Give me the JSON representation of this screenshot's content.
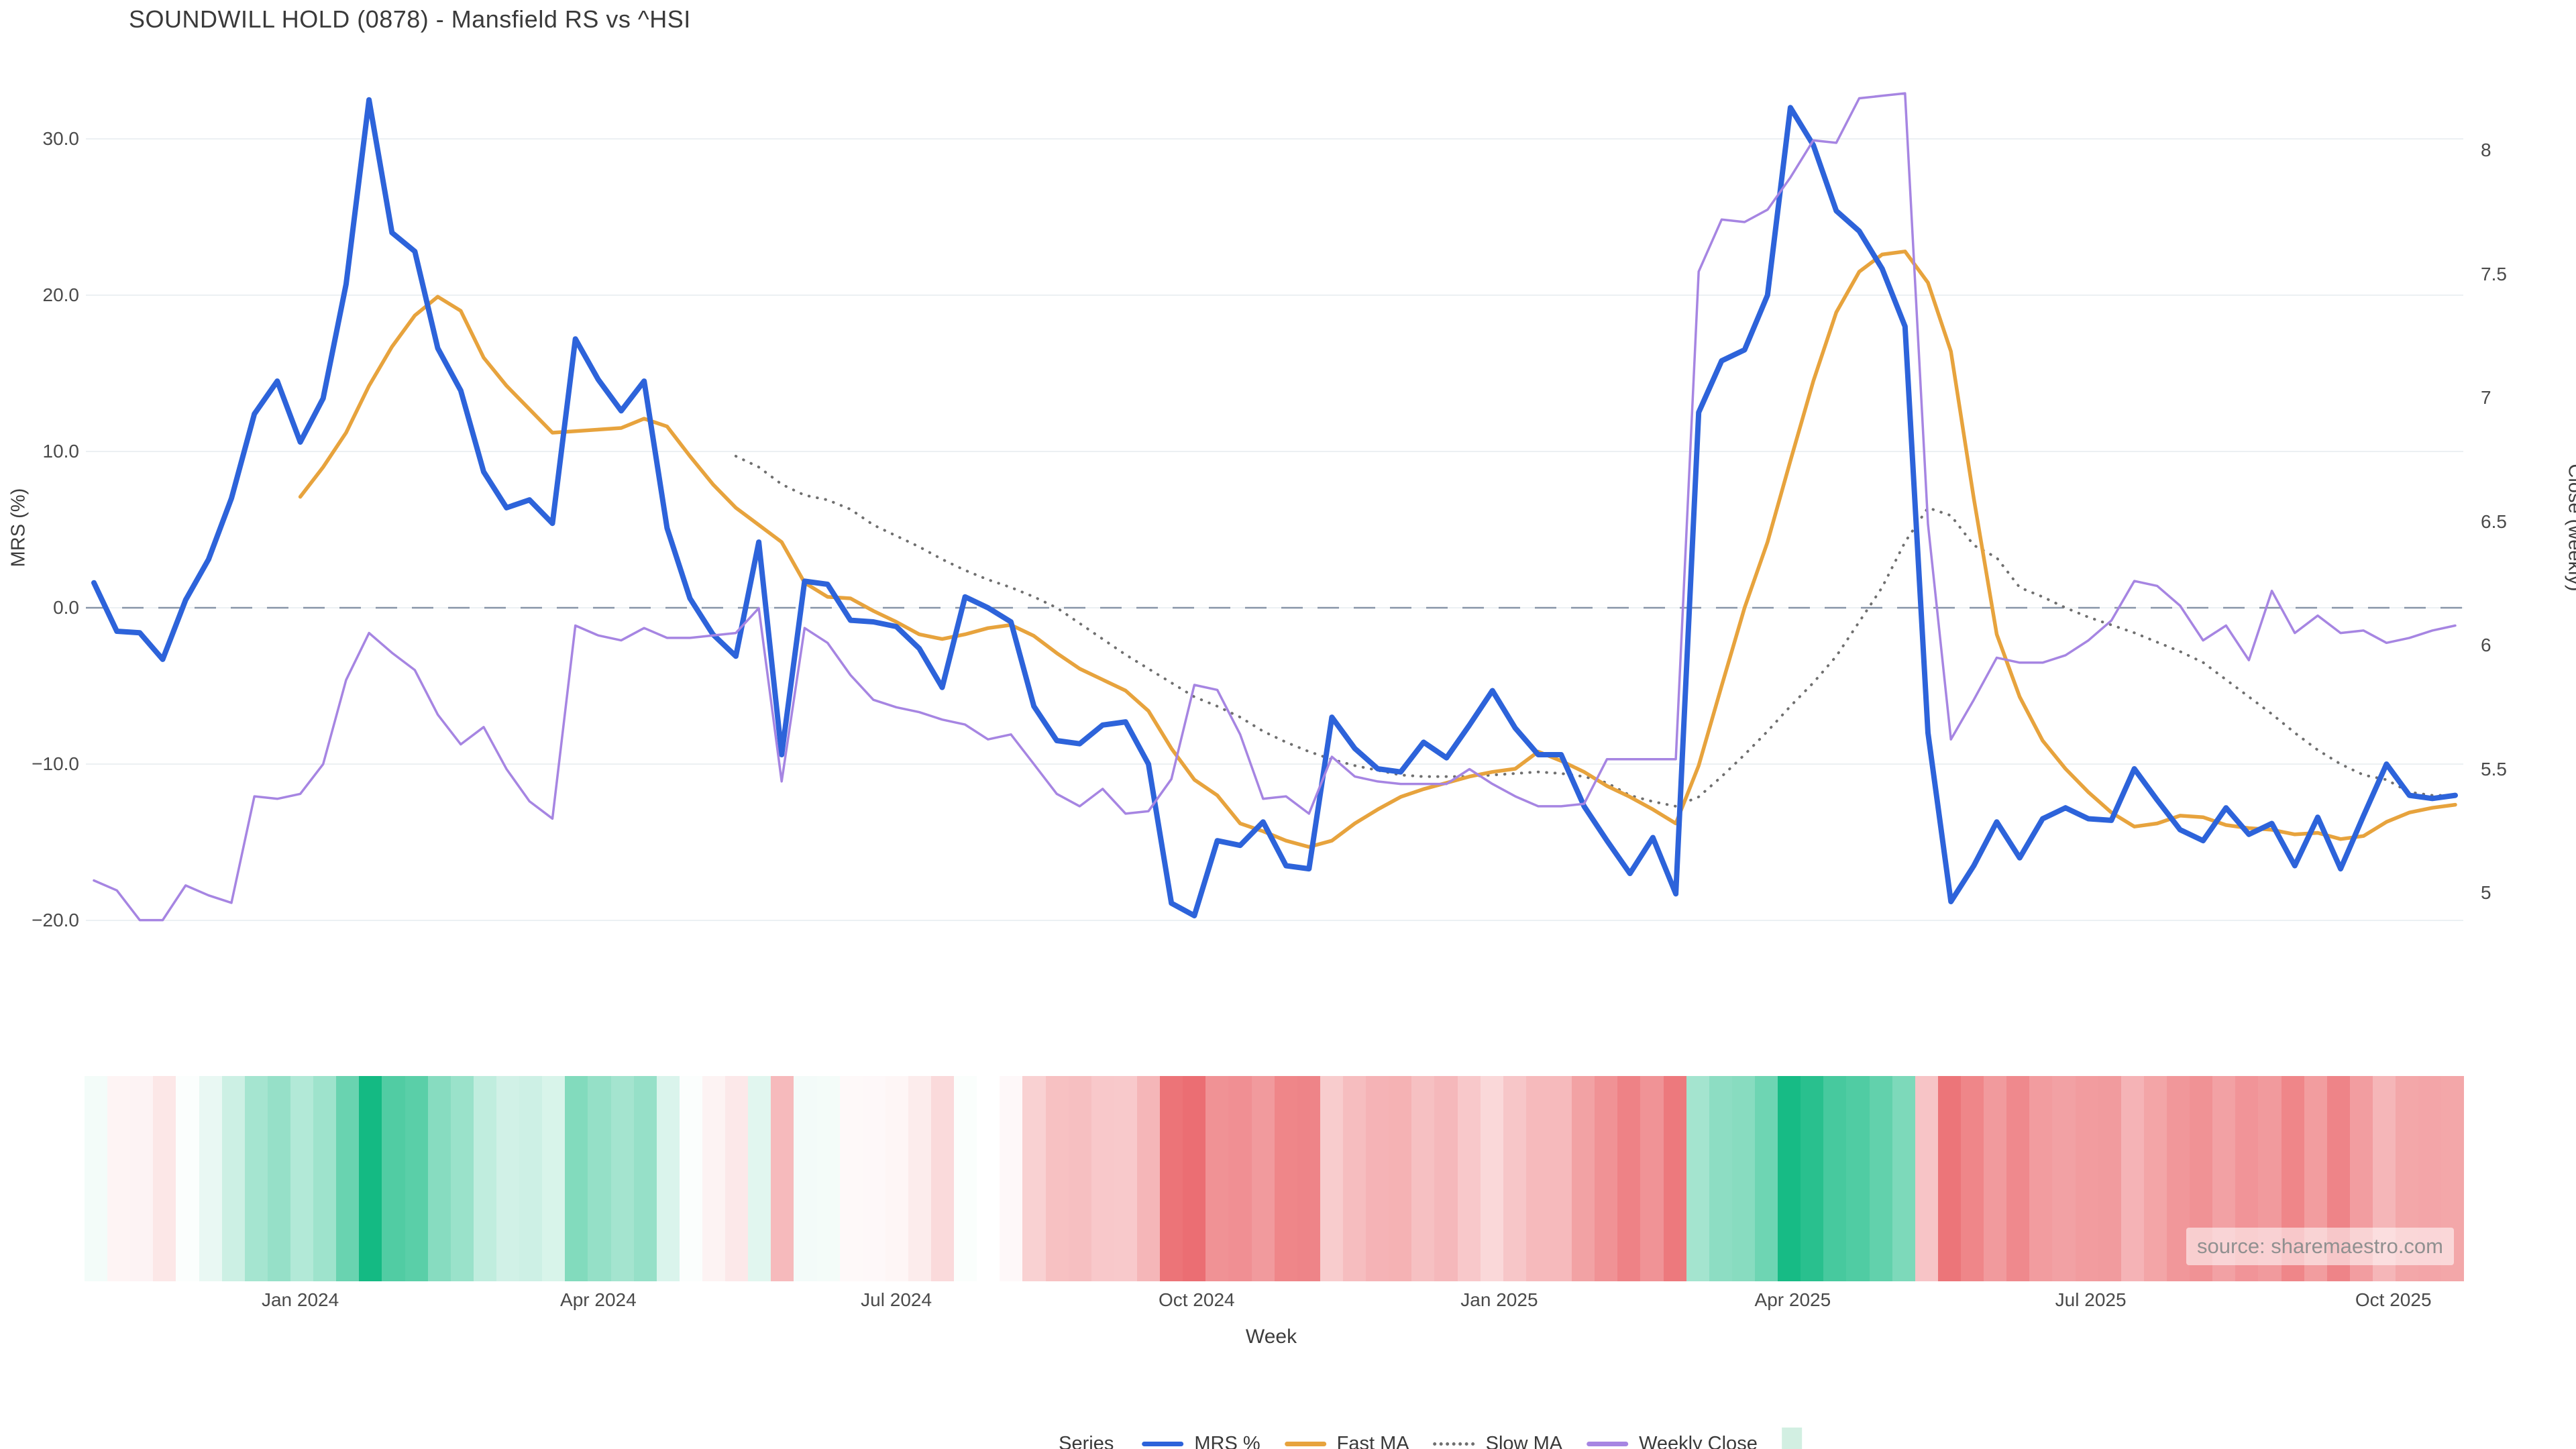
{
  "title": "SOUNDWILL HOLD (0878) - Mansfield RS vs ^HSI",
  "source_note": "source: sharemaestro.com",
  "axes": {
    "left": {
      "label": "MRS (%)",
      "ticks": [
        {
          "v": 30,
          "label": "30.0"
        },
        {
          "v": 20,
          "label": "20.0"
        },
        {
          "v": 10,
          "label": "10.0"
        },
        {
          "v": 0,
          "label": "0.0"
        },
        {
          "v": -10,
          "label": "−10.0"
        },
        {
          "v": -20,
          "label": "−20.0"
        }
      ]
    },
    "right": {
      "label": "Close (weekly)",
      "ticks": [
        {
          "v": 8,
          "label": "8"
        },
        {
          "v": 7.5,
          "label": "7.5"
        },
        {
          "v": 7,
          "label": "7"
        },
        {
          "v": 6.5,
          "label": "6.5"
        },
        {
          "v": 6,
          "label": "6"
        },
        {
          "v": 5.5,
          "label": "5.5"
        },
        {
          "v": 5,
          "label": "5"
        }
      ]
    },
    "x": {
      "label": "Week",
      "ticks": [
        {
          "w": 9.0,
          "label": "Jan 2024"
        },
        {
          "w": 22.0,
          "label": "Apr 2024"
        },
        {
          "w": 35.0,
          "label": "Jul 2024"
        },
        {
          "w": 48.1,
          "label": "Oct 2024"
        },
        {
          "w": 61.3,
          "label": "Jan 2025"
        },
        {
          "w": 74.1,
          "label": "Apr 2025"
        },
        {
          "w": 87.1,
          "label": "Jul 2025"
        },
        {
          "w": 100.3,
          "label": "Oct 2025"
        }
      ]
    }
  },
  "legend": {
    "title": "Series",
    "items": [
      {
        "label": "MRS %",
        "style": "solid",
        "color": "#2d63da"
      },
      {
        "label": "Fast MA",
        "style": "solid",
        "color": "#e7a33d"
      },
      {
        "label": "Slow MA",
        "style": "dotted",
        "color": "#6f6f6f"
      },
      {
        "label": "Weekly Close",
        "style": "solid",
        "color": "#a685e2"
      },
      {
        "label": "",
        "style": "swatch",
        "color": "#d2efe2"
      }
    ]
  },
  "chart_data": {
    "type": "line",
    "x_unit": "week_index",
    "n_weeks": 104,
    "xlabel": "Week",
    "ylabel_left": "MRS (%)",
    "ylabel_right": "Close (weekly)",
    "left_ylim": [
      -22,
      34
    ],
    "right_ylim": [
      4.8,
      8.4
    ],
    "grid": "horizontal-left-ticks",
    "zero_line": {
      "value": 0,
      "style": "dashed",
      "color": "#8795a8"
    },
    "series": [
      {
        "name": "MRS %",
        "axis": "left",
        "color": "#2d63da",
        "width": 8,
        "dash": "solid",
        "values": [
          1.6,
          -1.5,
          -1.6,
          -3.3,
          0.5,
          3.1,
          7.0,
          12.4,
          14.5,
          10.6,
          13.4,
          20.7,
          32.5,
          24.0,
          22.8,
          16.6,
          13.9,
          8.7,
          6.4,
          6.9,
          5.4,
          17.2,
          14.6,
          12.6,
          14.5,
          5.1,
          0.6,
          -1.7,
          -3.1,
          4.2,
          -9.4,
          1.7,
          1.5,
          -0.8,
          -0.9,
          -1.2,
          -2.6,
          -5.1,
          0.7,
          0.0,
          -0.9,
          -6.3,
          -8.5,
          -8.7,
          -7.5,
          -7.3,
          -10.0,
          -18.9,
          -19.7,
          -14.9,
          -15.2,
          -13.7,
          -16.5,
          -16.7,
          -7.0,
          -9.0,
          -10.3,
          -10.5,
          -8.6,
          -9.6,
          -7.5,
          -5.3,
          -7.7,
          -9.4,
          -9.4,
          -12.7,
          -14.9,
          -17.0,
          -14.7,
          -18.3,
          12.5,
          15.8,
          16.5,
          20.0,
          32.0,
          29.6,
          25.4,
          24.1,
          21.7,
          18.0,
          -8.0,
          -18.8,
          -16.5,
          -13.7,
          -16.0,
          -13.5,
          -12.8,
          -13.5,
          -13.6,
          -10.3,
          -12.3,
          -14.2,
          -14.9,
          -12.8,
          -14.5,
          -13.8,
          -16.5,
          -13.4,
          -16.7,
          -13.3,
          -10.0,
          -12.0,
          -12.2,
          -12.0
        ]
      },
      {
        "name": "Fast MA",
        "axis": "left",
        "color": "#e7a33d",
        "width": 5.5,
        "dash": "solid",
        "values": [
          null,
          null,
          null,
          null,
          null,
          null,
          null,
          null,
          null,
          7.1,
          9.0,
          11.2,
          14.2,
          16.7,
          18.7,
          19.9,
          19.0,
          16.0,
          14.2,
          12.7,
          11.2,
          11.3,
          11.4,
          11.5,
          12.1,
          11.6,
          9.7,
          7.9,
          6.4,
          5.3,
          4.2,
          1.6,
          0.7,
          0.6,
          -0.2,
          -0.9,
          -1.7,
          -2.0,
          -1.7,
          -1.3,
          -1.1,
          -1.8,
          -2.9,
          -3.9,
          -4.6,
          -5.3,
          -6.6,
          -9.0,
          -11.0,
          -12.0,
          -13.8,
          -14.3,
          -14.9,
          -15.3,
          -14.9,
          -13.8,
          -12.9,
          -12.1,
          -11.6,
          -11.2,
          -10.8,
          -10.5,
          -10.3,
          -9.2,
          -9.8,
          -10.5,
          -11.4,
          -12.1,
          -12.9,
          -13.8,
          -10.1,
          -5.0,
          0.0,
          4.2,
          9.4,
          14.5,
          18.9,
          21.5,
          22.6,
          22.8,
          20.8,
          16.4,
          7.0,
          -1.7,
          -5.7,
          -8.5,
          -10.3,
          -11.8,
          -13.1,
          -14.0,
          -13.8,
          -13.3,
          -13.4,
          -13.9,
          -14.1,
          -14.2,
          -14.5,
          -14.4,
          -14.8,
          -14.6,
          -13.7,
          -13.1,
          -12.8,
          -12.6
        ]
      },
      {
        "name": "Slow MA",
        "axis": "left",
        "color": "#6f6f6f",
        "width": 4,
        "dash": "dotted",
        "values": [
          null,
          null,
          null,
          null,
          null,
          null,
          null,
          null,
          null,
          null,
          null,
          null,
          null,
          null,
          null,
          null,
          null,
          null,
          null,
          null,
          null,
          null,
          null,
          null,
          null,
          null,
          null,
          null,
          9.7,
          9.0,
          7.9,
          7.2,
          6.9,
          6.3,
          5.3,
          4.6,
          3.9,
          3.1,
          2.4,
          1.8,
          1.3,
          0.7,
          0.0,
          -1.0,
          -2.0,
          -3.0,
          -3.9,
          -4.8,
          -5.7,
          -6.3,
          -7.0,
          -7.9,
          -8.6,
          -9.2,
          -9.7,
          -10.1,
          -10.4,
          -10.7,
          -10.8,
          -10.8,
          -10.8,
          -10.7,
          -10.6,
          -10.5,
          -10.6,
          -10.8,
          -11.2,
          -12.0,
          -12.4,
          -12.7,
          -12.1,
          -10.8,
          -9.4,
          -7.9,
          -6.3,
          -4.8,
          -3.1,
          -0.9,
          1.3,
          4.2,
          6.4,
          5.9,
          4.0,
          3.2,
          1.3,
          0.7,
          0.0,
          -0.6,
          -1.1,
          -1.6,
          -2.2,
          -2.8,
          -3.5,
          -4.6,
          -5.7,
          -6.8,
          -8.0,
          -9.1,
          -10.0,
          -10.7,
          -11.0,
          -11.8,
          -12.0,
          -12.0
        ]
      },
      {
        "name": "Weekly Close",
        "axis": "right",
        "color": "#a685e2",
        "width": 3.5,
        "dash": "solid",
        "values": [
          5.05,
          5.01,
          4.89,
          4.89,
          5.03,
          4.99,
          4.96,
          5.39,
          5.38,
          5.4,
          5.52,
          5.86,
          6.05,
          5.97,
          5.9,
          5.72,
          5.6,
          5.67,
          5.5,
          5.37,
          5.3,
          6.08,
          6.04,
          6.02,
          6.07,
          6.03,
          6.03,
          6.04,
          6.05,
          6.15,
          5.45,
          6.07,
          6.01,
          5.88,
          5.78,
          5.75,
          5.73,
          5.7,
          5.68,
          5.62,
          5.64,
          5.52,
          5.4,
          5.35,
          5.42,
          5.32,
          5.33,
          5.46,
          5.84,
          5.82,
          5.64,
          5.38,
          5.39,
          5.32,
          5.55,
          5.47,
          5.45,
          5.44,
          5.44,
          5.44,
          5.5,
          5.44,
          5.39,
          5.35,
          5.35,
          5.36,
          5.54,
          5.54,
          5.54,
          5.54,
          7.51,
          7.72,
          7.71,
          7.76,
          7.89,
          8.04,
          8.03,
          8.21,
          8.22,
          8.23,
          6.49,
          5.62,
          5.78,
          5.95,
          5.93,
          5.93,
          5.96,
          6.02,
          6.1,
          6.26,
          6.24,
          6.16,
          6.02,
          6.08,
          5.94,
          6.22,
          6.05,
          6.12,
          6.05,
          6.06,
          6.01,
          6.03,
          6.06,
          6.08
        ]
      }
    ],
    "heatmap": {
      "source_series": "MRS %",
      "rows": 1,
      "positive_color": "#10b981",
      "negative_color": "#e8565b",
      "neutral_color": "#ffffff",
      "positive_scale_max": 33,
      "negative_scale_max": 23
    }
  }
}
